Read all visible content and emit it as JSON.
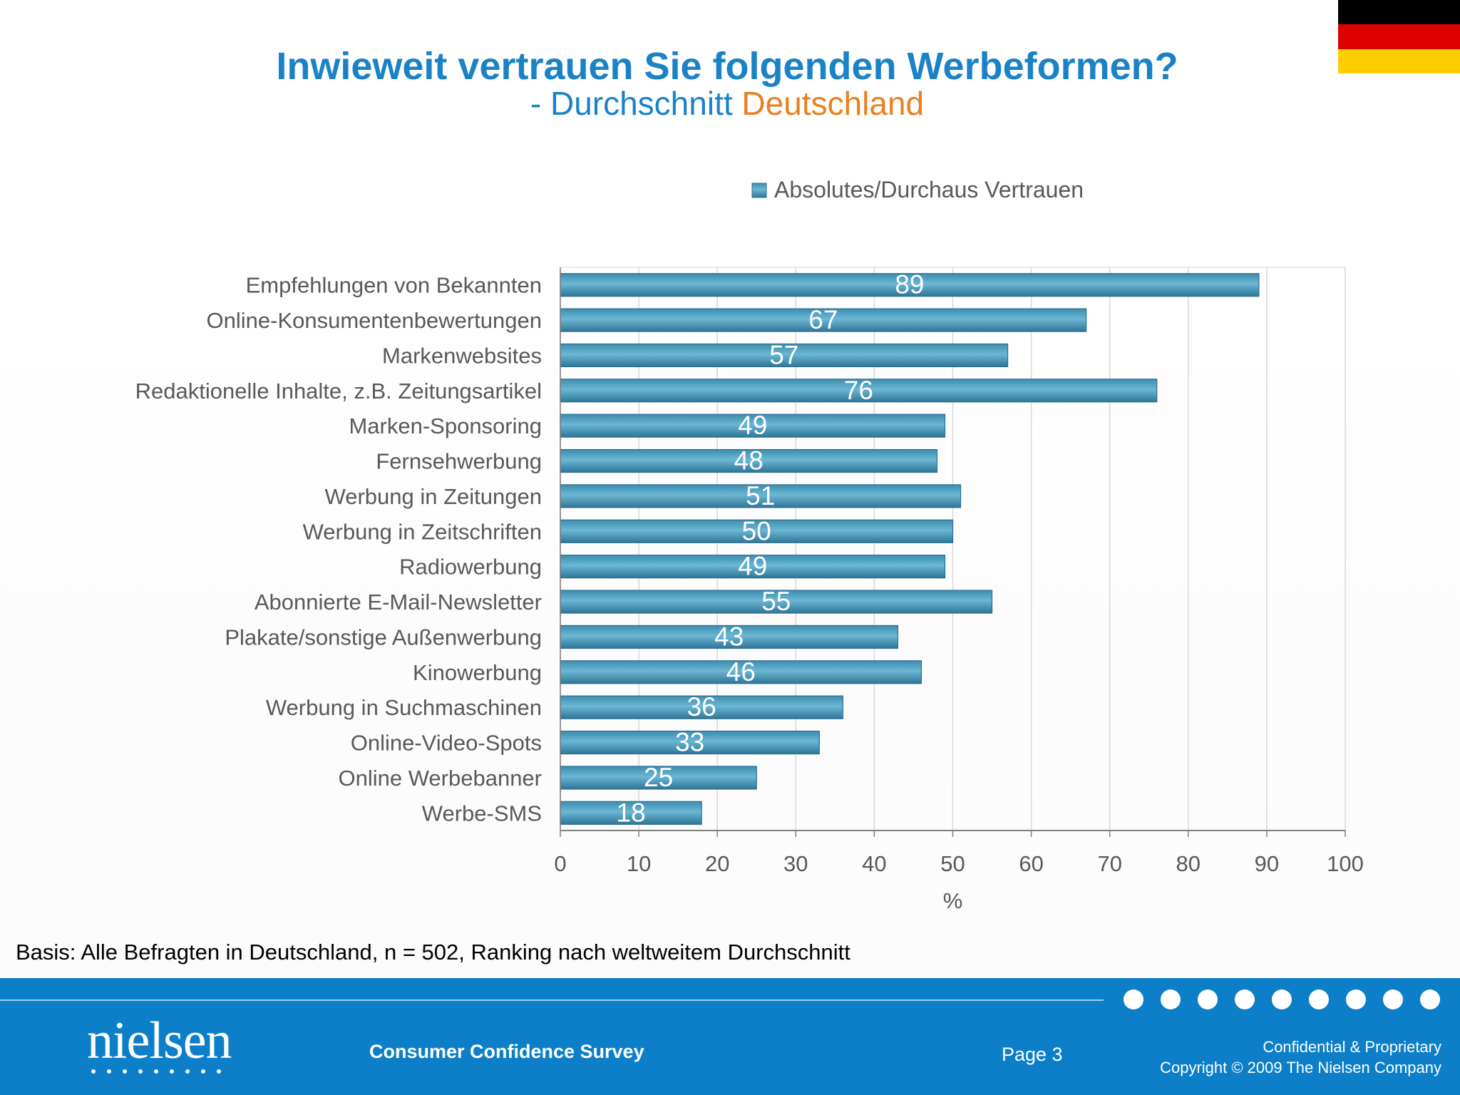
{
  "header": {
    "title": "Inwieweit vertrauen Sie folgenden Werbeformen?",
    "subtitle_prefix": "- Durchschnitt ",
    "subtitle_highlight": "Deutschland",
    "title_color": "#1a82c6",
    "highlight_color": "#e8811e"
  },
  "flag": {
    "colors": [
      "#000000",
      "#dd0000",
      "#ffce00"
    ]
  },
  "chart_data": {
    "type": "bar",
    "orientation": "horizontal",
    "categories": [
      "Empfehlungen von Bekannten",
      "Online-Konsumentenbewertungen",
      "Markenwebsites",
      "Redaktionelle Inhalte, z.B. Zeitungsartikel",
      "Marken-Sponsoring",
      "Fernsehwerbung",
      "Werbung in Zeitungen",
      "Werbung in Zeitschriften",
      "Radiowerbung",
      "Abonnierte E-Mail-Newsletter",
      "Plakate/sonstige Außenwerbung",
      "Kinowerbung",
      "Werbung in Suchmaschinen",
      "Online-Video-Spots",
      "Online Werbebanner",
      "Werbe-SMS"
    ],
    "series": [
      {
        "name": "Absolutes/Durchaus Vertrauen",
        "values": [
          89,
          67,
          57,
          76,
          49,
          48,
          51,
          50,
          49,
          55,
          43,
          46,
          36,
          33,
          25,
          18
        ],
        "color": "#4f9fbf"
      }
    ],
    "data_labels": true,
    "xlabel": "%",
    "xlim": [
      0,
      100
    ],
    "xticks": [
      0,
      10,
      20,
      30,
      40,
      50,
      60,
      70,
      80,
      90,
      100
    ],
    "grid": true,
    "legend": "top"
  },
  "basis_note": "Basis: Alle Befragten in Deutschland, n = 502, Ranking nach weltweitem Durchschnitt",
  "footer": {
    "logo_text": "nielsen",
    "survey_name": "Consumer Confidence Survey",
    "page": "Page 3",
    "confidential": "Confidential & Proprietary",
    "copyright": "Copyright © 2009 The Nielsen Company",
    "background": "#0c7fc8"
  }
}
